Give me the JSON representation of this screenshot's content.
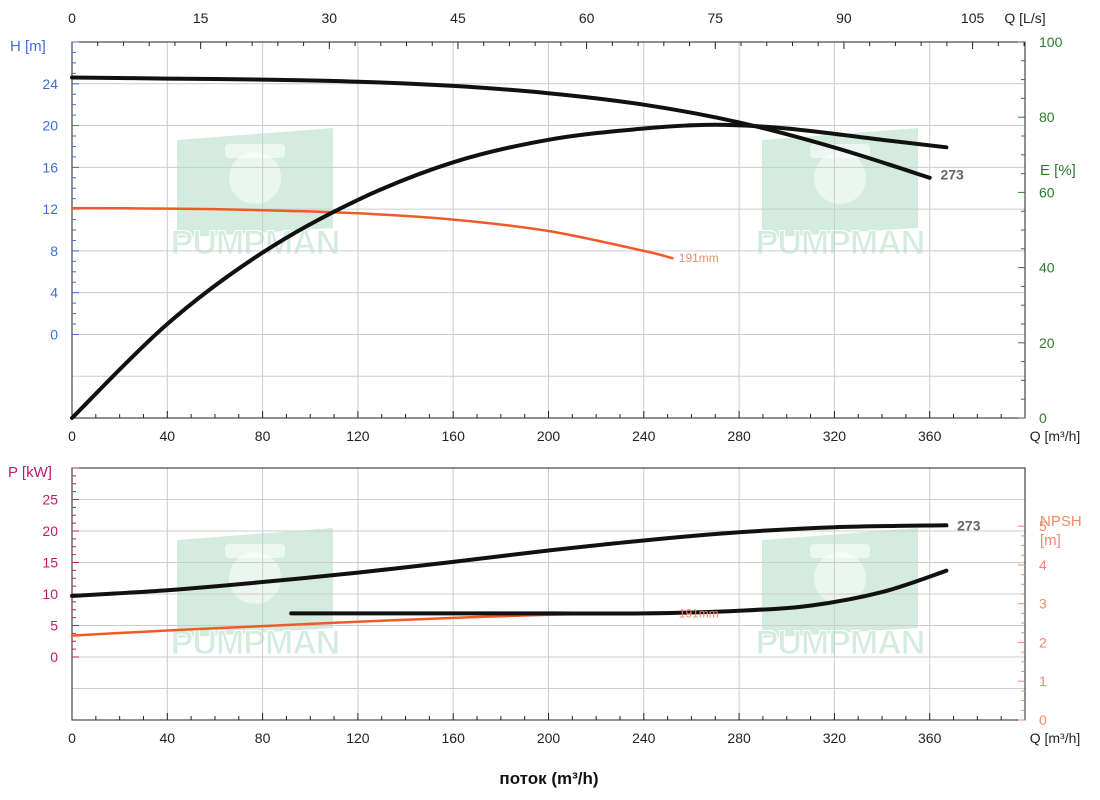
{
  "colors": {
    "blue": "#3d6ed8",
    "green": "#2d7a2d",
    "magenta": "#c4186d",
    "orange": "#f05a28",
    "salmon": "#f08a6a",
    "black": "#111111",
    "grid": "#cccccc",
    "watermark": "#cde9da",
    "label_grey": "#666666"
  },
  "watermark": {
    "text": "PUMPMAN",
    "icon": "pumpman-logo-icon"
  },
  "x_title": "поток (m³/h)",
  "chart_data": [
    {
      "type": "line",
      "panel": "top",
      "x_axis_bottom": {
        "label": "Q [m³/h]",
        "ticks": [
          0,
          40,
          80,
          120,
          160,
          200,
          240,
          280,
          320,
          360
        ],
        "range": [
          0,
          400
        ]
      },
      "x_axis_top": {
        "label": "Q [L/s]",
        "ticks": [
          0,
          15,
          30,
          45,
          60,
          75,
          90,
          105
        ],
        "range": [
          0,
          111.11
        ]
      },
      "y_axis_left": {
        "label": "H [m]",
        "ticks": [
          0,
          4,
          8,
          12,
          16,
          20,
          24
        ],
        "range": [
          -8,
          28
        ]
      },
      "y_axis_right": {
        "label": "E [%]",
        "ticks": [
          0,
          20,
          40,
          60,
          80,
          100
        ],
        "range": [
          0,
          100
        ]
      },
      "grid": true,
      "series": [
        {
          "name": "273",
          "kind": "head",
          "color": "black",
          "axis": "left",
          "x": [
            0,
            40,
            80,
            120,
            160,
            200,
            240,
            280,
            320,
            360
          ],
          "y": [
            24.6,
            24.5,
            24.4,
            24.2,
            23.8,
            23.1,
            22.0,
            20.3,
            17.9,
            15.0
          ]
        },
        {
          "name": "191mm",
          "kind": "head",
          "color": "orange",
          "axis": "left",
          "x": [
            0,
            40,
            80,
            120,
            160,
            200,
            240,
            252
          ],
          "y": [
            12.1,
            12.05,
            11.9,
            11.6,
            11.0,
            9.9,
            8.0,
            7.3
          ]
        },
        {
          "name": "",
          "kind": "efficiency",
          "color": "black",
          "axis": "right",
          "x": [
            0,
            40,
            80,
            120,
            160,
            200,
            240,
            270,
            300,
            340,
            367
          ],
          "y": [
            0,
            25,
            44,
            58,
            68,
            74,
            77,
            78,
            77,
            74,
            72
          ]
        }
      ],
      "labels": [
        {
          "text": "273",
          "x": 362,
          "y": 15.3,
          "axis": "left",
          "style": "grey"
        },
        {
          "text": "191mm",
          "x": 253,
          "y": 7.4,
          "axis": "left",
          "style": "salmon"
        }
      ]
    },
    {
      "type": "line",
      "panel": "bottom",
      "x_axis_bottom": {
        "label": "Q [m³/h]",
        "ticks": [
          0,
          40,
          80,
          120,
          160,
          200,
          240,
          280,
          320,
          360
        ],
        "range": [
          0,
          400
        ]
      },
      "y_axis_left": {
        "label": "P [kW]",
        "ticks": [
          0,
          5,
          10,
          15,
          20,
          25
        ],
        "range": [
          -10,
          30
        ]
      },
      "y_axis_right": {
        "label": "NPSH [m]",
        "ticks": [
          0,
          1,
          2,
          3,
          4,
          5
        ],
        "range": [
          0,
          6.5
        ]
      },
      "grid": true,
      "series": [
        {
          "name": "273",
          "kind": "power",
          "color": "black",
          "axis": "left",
          "x": [
            0,
            40,
            80,
            120,
            160,
            200,
            240,
            280,
            320,
            367
          ],
          "y": [
            9.7,
            10.6,
            11.9,
            13.4,
            15.1,
            16.9,
            18.5,
            19.8,
            20.6,
            20.9
          ]
        },
        {
          "name": "191mm",
          "kind": "power",
          "color": "orange",
          "axis": "left",
          "x": [
            0,
            40,
            80,
            120,
            160,
            200,
            252
          ],
          "y": [
            3.4,
            4.2,
            4.9,
            5.6,
            6.2,
            6.7,
            7.1
          ]
        },
        {
          "name": "",
          "kind": "npsh",
          "color": "black",
          "axis": "right",
          "x": [
            92,
            120,
            160,
            200,
            240,
            280,
            310,
            340,
            367
          ],
          "y": [
            2.75,
            2.75,
            2.75,
            2.75,
            2.75,
            2.82,
            2.95,
            3.3,
            3.85
          ]
        }
      ],
      "labels": [
        {
          "text": "273",
          "x": 369,
          "y": 20.9,
          "axis": "left",
          "style": "grey"
        },
        {
          "text": "191mm",
          "x": 253,
          "y": 7.1,
          "axis": "left",
          "style": "salmon"
        }
      ]
    }
  ]
}
